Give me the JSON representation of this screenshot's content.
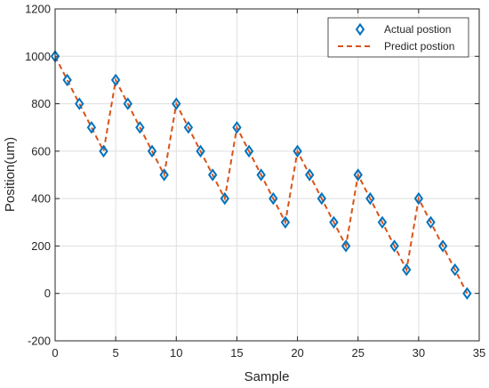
{
  "chart_data": {
    "type": "line",
    "title": "",
    "xlabel": "Sample",
    "ylabel": "Position(um)",
    "xlim": [
      0,
      35
    ],
    "ylim": [
      -200,
      1200
    ],
    "xticks": [
      0,
      5,
      10,
      15,
      20,
      25,
      30,
      35
    ],
    "yticks": [
      -200,
      0,
      200,
      400,
      600,
      800,
      1000,
      1200
    ],
    "grid": true,
    "legend_position": "top-right",
    "series": [
      {
        "name": "Actual postion",
        "style": "markers",
        "marker": "diamond",
        "color": "#0072BD",
        "x": [
          0,
          1,
          2,
          3,
          4,
          5,
          6,
          7,
          8,
          9,
          10,
          11,
          12,
          13,
          14,
          15,
          16,
          17,
          18,
          19,
          20,
          21,
          22,
          23,
          24,
          25,
          26,
          27,
          28,
          29,
          30,
          31,
          32,
          33,
          34
        ],
        "y": [
          1000,
          900,
          800,
          700,
          600,
          900,
          800,
          700,
          600,
          500,
          800,
          700,
          600,
          500,
          400,
          700,
          600,
          500,
          400,
          300,
          600,
          500,
          400,
          300,
          200,
          500,
          400,
          300,
          200,
          100,
          400,
          300,
          200,
          100,
          0
        ]
      },
      {
        "name": "Predict postion",
        "style": "dashed-line",
        "color": "#D95319",
        "x": [
          0,
          1,
          2,
          3,
          4,
          5,
          6,
          7,
          8,
          9,
          10,
          11,
          12,
          13,
          14,
          15,
          16,
          17,
          18,
          19,
          20,
          21,
          22,
          23,
          24,
          25,
          26,
          27,
          28,
          29,
          30,
          31,
          32,
          33,
          34
        ],
        "y": [
          1000,
          900,
          800,
          700,
          600,
          900,
          800,
          700,
          600,
          500,
          800,
          700,
          600,
          500,
          400,
          700,
          600,
          500,
          400,
          300,
          600,
          500,
          400,
          300,
          200,
          500,
          400,
          300,
          200,
          100,
          400,
          300,
          200,
          100,
          0
        ]
      }
    ]
  }
}
